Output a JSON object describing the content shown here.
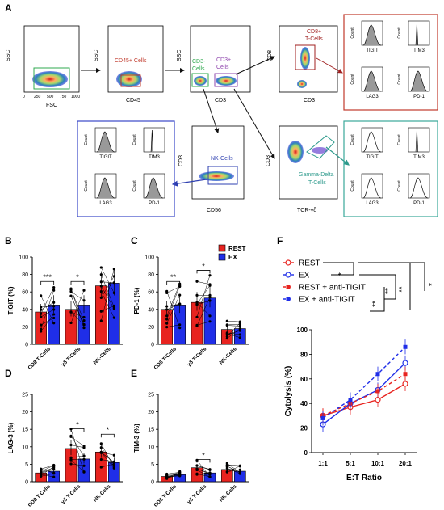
{
  "panel_letters": {
    "A": "A",
    "B": "B",
    "C": "C",
    "D": "D",
    "E": "E",
    "F": "F"
  },
  "gating": {
    "fsc_ssc": {
      "x_label": "FSC",
      "y_label": "SSC",
      "x_ticks": [
        "0",
        "250",
        "500",
        "750",
        "1000"
      ]
    },
    "cd45": {
      "x_label": "CD45",
      "y_label": "SSC",
      "gate_label": "CD45+ Cells"
    },
    "cd3": {
      "x_label": "CD3",
      "y_label": "SSC",
      "gate1_label_1": "CD3-",
      "gate1_label_2": "Cells",
      "gate2_label_1": "CD3+",
      "gate2_label_2": "Cells"
    },
    "cd8": {
      "x_label": "CD3",
      "y_label": "CD8",
      "gate_label_1": "CD8+",
      "gate_label_2": "T-Cells"
    },
    "cd56": {
      "x_label": "CD56",
      "y_label": "CD3",
      "gate_label": "NK-Cells"
    },
    "tcrgd": {
      "x_label": "TCR-γδ",
      "y_label": "CD3",
      "gate_label_1": "Gamma-Delta",
      "gate_label_2": "T-Cells"
    },
    "histograms": {
      "count_label": "Count",
      "markers": [
        "TIGIT",
        "TIM3",
        "LAG3",
        "PD-1"
      ]
    },
    "colors": {
      "red_box": "#c0392b",
      "blue_box": "#3a48c8",
      "teal_box": "#3aa89a"
    }
  },
  "legend_BC": {
    "rest": "REST",
    "ex": "EX",
    "rest_color": "#e8231f",
    "ex_color": "#1f2ee8"
  },
  "legend_F": {
    "items": [
      "REST",
      "EX",
      "REST + anti-TIGIT",
      "EX + anti-TIGIT"
    ],
    "sig": [
      "*",
      "**",
      "**",
      "**",
      "*"
    ]
  },
  "chart_data": [
    {
      "panel": "B",
      "type": "bar",
      "ylabel": "TIGIT (%)",
      "ylim": [
        0,
        100
      ],
      "yticks": [
        "0",
        "20",
        "40",
        "60",
        "80",
        "100"
      ],
      "categories": [
        "CD8 T-Cells",
        "γδ T-Cells",
        "NK-Cells"
      ],
      "series": [
        {
          "name": "REST",
          "values": [
            37,
            40,
            67
          ]
        },
        {
          "name": "EX",
          "values": [
            45,
            45,
            70
          ]
        }
      ],
      "significance": [
        "***",
        "*",
        ""
      ]
    },
    {
      "panel": "C",
      "type": "bar",
      "ylabel": "PD-1 (%)",
      "ylim": [
        0,
        100
      ],
      "yticks": [
        "0",
        "20",
        "40",
        "60",
        "80",
        "100"
      ],
      "categories": [
        "CD8 T-Cells",
        "γδ T-Cells",
        "NK-Cells"
      ],
      "series": [
        {
          "name": "REST",
          "values": [
            40,
            48,
            17
          ]
        },
        {
          "name": "EX",
          "values": [
            45,
            53,
            18
          ]
        }
      ],
      "significance": [
        "**",
        "*",
        ""
      ]
    },
    {
      "panel": "D",
      "type": "bar",
      "ylabel": "LAG-3 (%)",
      "ylim": [
        0,
        25
      ],
      "yticks": [
        "0",
        "5",
        "10",
        "15",
        "20",
        "25"
      ],
      "categories": [
        "CD8 T-Cells",
        "γδ T-Cells",
        "NK-Cells"
      ],
      "series": [
        {
          "name": "REST",
          "values": [
            2.5,
            9.5,
            8.5
          ]
        },
        {
          "name": "EX",
          "values": [
            3,
            6.5,
            5.5
          ]
        }
      ],
      "significance": [
        "",
        "*",
        "*"
      ]
    },
    {
      "panel": "E",
      "type": "bar",
      "ylabel": "TIM-3 (%)",
      "ylim": [
        0,
        25
      ],
      "yticks": [
        "0",
        "5",
        "10",
        "15",
        "20",
        "25"
      ],
      "categories": [
        "CD8 T-Cells",
        "γδ T-Cells",
        "NK-Cells"
      ],
      "series": [
        {
          "name": "REST",
          "values": [
            1.5,
            4,
            3.5
          ]
        },
        {
          "name": "EX",
          "values": [
            2,
            2.5,
            3
          ]
        }
      ],
      "significance": [
        "",
        "*",
        ""
      ]
    },
    {
      "panel": "F",
      "type": "line",
      "xlabel": "E:T Ratio",
      "ylabel": "Cytolysis (%)",
      "ylim": [
        0,
        100
      ],
      "yticks": [
        "0",
        "20",
        "40",
        "60",
        "80",
        "100"
      ],
      "categories": [
        "1:1",
        "5:1",
        "10:1",
        "20:1"
      ],
      "series": [
        {
          "name": "REST",
          "values": [
            30,
            37,
            43,
            56
          ]
        },
        {
          "name": "EX",
          "values": [
            23,
            40,
            51,
            73
          ]
        },
        {
          "name": "REST + anti-TIGIT",
          "values": [
            30,
            40,
            50,
            64
          ]
        },
        {
          "name": "EX + anti-TIGIT",
          "values": [
            28,
            43,
            64,
            86
          ]
        }
      ]
    }
  ]
}
